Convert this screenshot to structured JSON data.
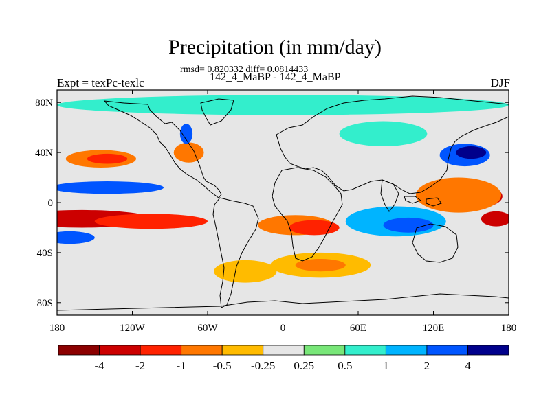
{
  "chart_data": {
    "type": "heatmap",
    "title": "Precipitation (in mm/day)",
    "stats_line": "rmsd= 0.820332 diff= 0.0814433",
    "subtitle": "142_4_MaBP - 142_4_MaBP",
    "left_label": "Expt = texPc-texlc",
    "right_label": "DJF",
    "xlim": [
      -180,
      180
    ],
    "ylim": [
      -90,
      90
    ],
    "x_ticks": [
      {
        "value": -180,
        "label": "180"
      },
      {
        "value": -120,
        "label": "120W"
      },
      {
        "value": -60,
        "label": "60W"
      },
      {
        "value": 0,
        "label": "0"
      },
      {
        "value": 60,
        "label": "60E"
      },
      {
        "value": 120,
        "label": "120E"
      },
      {
        "value": 180,
        "label": "180"
      }
    ],
    "y_ticks": [
      {
        "value": 80,
        "label": "80N"
      },
      {
        "value": 40,
        "label": "40N"
      },
      {
        "value": 0,
        "label": "0"
      },
      {
        "value": -40,
        "label": "40S"
      },
      {
        "value": -80,
        "label": "80S"
      }
    ],
    "colorbar": {
      "colors": [
        "#8b0000",
        "#cc0000",
        "#ff2200",
        "#ff7700",
        "#ffbb00",
        "#e6e6e6",
        "#78e678",
        "#33eecc",
        "#00b4ff",
        "#0055ff",
        "#00008b"
      ],
      "labels": [
        {
          "boundary": 1,
          "label": "-4"
        },
        {
          "boundary": 2,
          "label": "-2"
        },
        {
          "boundary": 3,
          "label": "-1"
        },
        {
          "boundary": 4,
          "label": "-0.5"
        },
        {
          "boundary": 5,
          "label": "-0.25"
        },
        {
          "boundary": 6,
          "label": "0.25"
        },
        {
          "boundary": 7,
          "label": "0.5"
        },
        {
          "boundary": 8,
          "label": "1"
        },
        {
          "boundary": 9,
          "label": "2"
        },
        {
          "boundary": 10,
          "label": "4"
        }
      ]
    },
    "features": [
      {
        "name": "N Pacific storm track",
        "lon": -145,
        "lat": 35,
        "dlon": 28,
        "dlat": 7,
        "level": 3
      },
      {
        "name": "N Pacific storm track core",
        "lon": -140,
        "lat": 35,
        "dlon": 16,
        "dlat": 4,
        "level": 2
      },
      {
        "name": "N Atlantic storm track",
        "lon": -75,
        "lat": 40,
        "dlon": 12,
        "dlat": 8,
        "level": 3
      },
      {
        "name": "NE Atlantic dipole",
        "lon": -77,
        "lat": 55,
        "dlon": 5,
        "dlat": 8,
        "level": 9
      },
      {
        "name": "Pacific ITCZ",
        "lon": -160,
        "lat": -13,
        "dlon": 55,
        "dlat": 7,
        "level": 1
      },
      {
        "name": "Pacific ITCZ extension",
        "lon": -105,
        "lat": -15,
        "dlon": 45,
        "dlat": 6,
        "level": 2
      },
      {
        "name": "S Atlantic convergence",
        "lon": 10,
        "lat": -18,
        "dlon": 30,
        "dlat": 8,
        "level": 3
      },
      {
        "name": "Africa south",
        "lon": 25,
        "lat": -20,
        "dlon": 20,
        "dlat": 6,
        "level": 2
      },
      {
        "name": "Southern Ocean west",
        "lon": -30,
        "lat": -55,
        "dlon": 25,
        "dlat": 9,
        "level": 4
      },
      {
        "name": "Southern Ocean",
        "lon": 30,
        "lat": -50,
        "dlon": 40,
        "dlat": 10,
        "level": 4
      },
      {
        "name": "Southern Ocean core",
        "lon": 30,
        "lat": -50,
        "dlon": 20,
        "dlat": 5,
        "level": 3
      },
      {
        "name": "W Pacific warm pool",
        "lon": 150,
        "lat": 5,
        "dlon": 25,
        "dlat": 10,
        "level": 1
      },
      {
        "name": "W Pacific warm pool edge",
        "lon": 140,
        "lat": 6,
        "dlon": 34,
        "dlat": 14,
        "level": 3
      },
      {
        "name": "S Pacific",
        "lon": 170,
        "lat": -13,
        "dlon": 12,
        "dlat": 6,
        "level": 1
      },
      {
        "name": "N Pacific equatorial band",
        "lon": -140,
        "lat": 12,
        "dlon": 45,
        "dlat": 5,
        "level": 9
      },
      {
        "name": "Indian Ocean",
        "lon": 90,
        "lat": -15,
        "dlon": 40,
        "dlat": 12,
        "level": 8
      },
      {
        "name": "Indian Ocean core",
        "lon": 100,
        "lat": -18,
        "dlon": 20,
        "dlat": 6,
        "level": 9
      },
      {
        "name": "S Pacific north band",
        "lon": -170,
        "lat": -28,
        "dlon": 20,
        "dlat": 5,
        "level": 9
      },
      {
        "name": "W Pacific north",
        "lon": 145,
        "lat": 38,
        "dlon": 20,
        "dlat": 9,
        "level": 9
      },
      {
        "name": "W Pacific north core",
        "lon": 150,
        "lat": 40,
        "dlon": 12,
        "dlat": 5,
        "level": 10
      },
      {
        "name": "Arctic",
        "lon": 0,
        "lat": 78,
        "dlon": 180,
        "dlat": 8,
        "level": 7
      },
      {
        "name": "Siberia",
        "lon": 80,
        "lat": 55,
        "dlon": 35,
        "dlat": 10,
        "level": 7
      }
    ]
  }
}
